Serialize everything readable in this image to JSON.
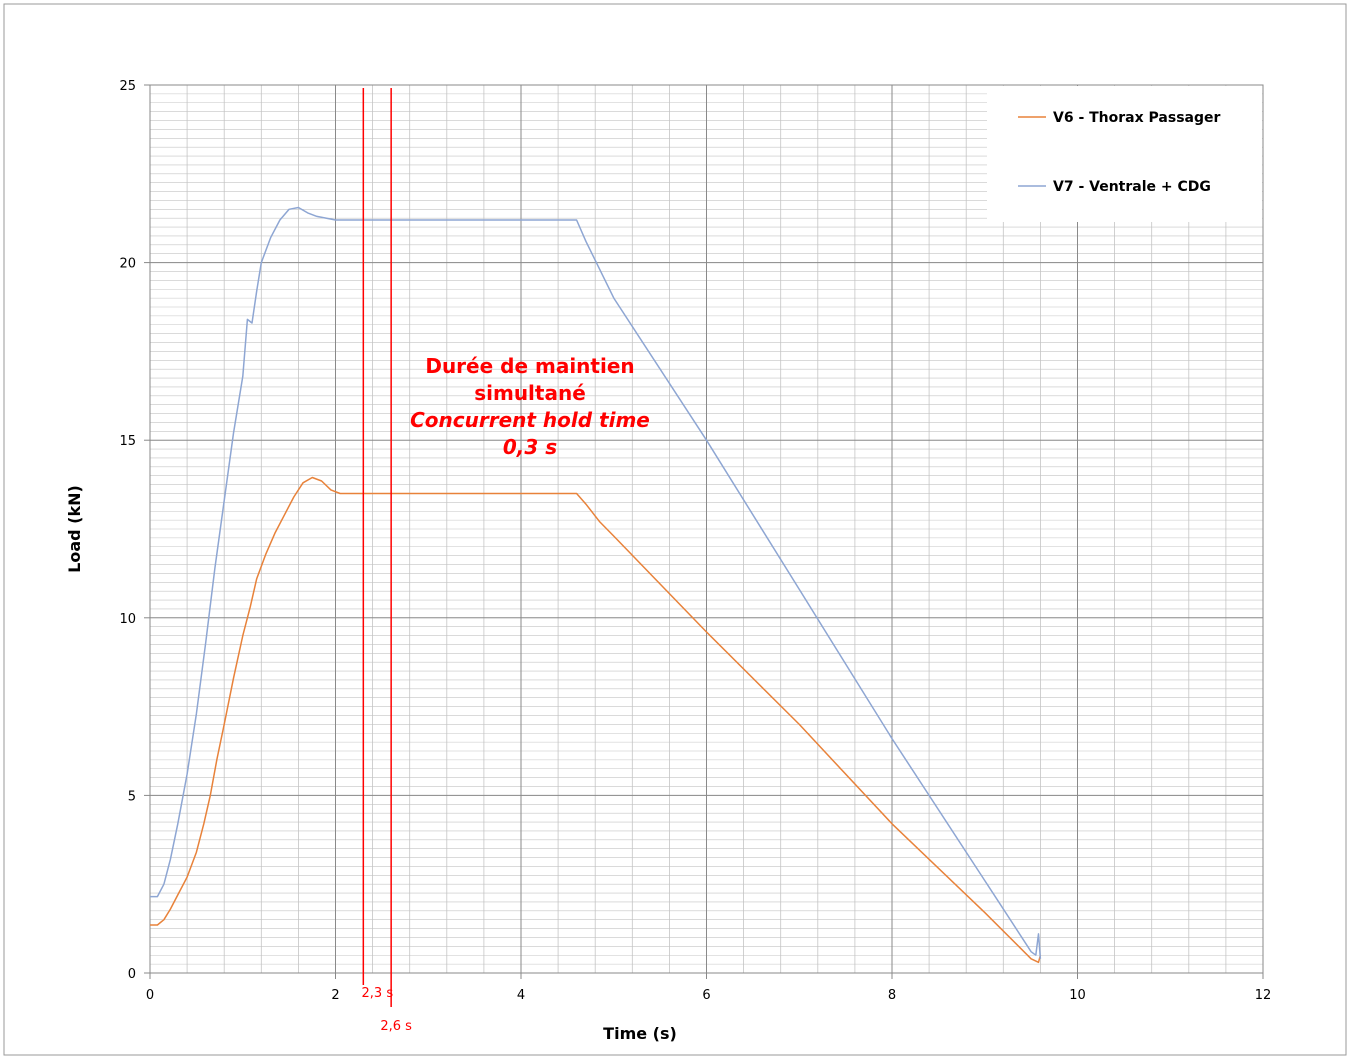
{
  "chart_data": {
    "type": "line",
    "xlabel": "Time (s)",
    "ylabel": "Load (kN)",
    "xlim": [
      0,
      12
    ],
    "ylim": [
      0,
      25
    ],
    "x_ticks": [
      0,
      2,
      4,
      6,
      8,
      10,
      12
    ],
    "y_ticks": [
      0,
      5,
      10,
      15,
      20,
      25
    ],
    "grid": true,
    "legend_position": "top-right",
    "series": [
      {
        "name": "V6 - Thorax Passager",
        "color": "#e8823a",
        "points": [
          [
            0.0,
            1.35
          ],
          [
            0.08,
            1.35
          ],
          [
            0.15,
            1.5
          ],
          [
            0.22,
            1.8
          ],
          [
            0.3,
            2.2
          ],
          [
            0.4,
            2.7
          ],
          [
            0.5,
            3.4
          ],
          [
            0.58,
            4.2
          ],
          [
            0.65,
            5.0
          ],
          [
            0.72,
            6.0
          ],
          [
            0.8,
            7.0
          ],
          [
            0.9,
            8.3
          ],
          [
            1.0,
            9.5
          ],
          [
            1.08,
            10.3
          ],
          [
            1.15,
            11.1
          ],
          [
            1.25,
            11.8
          ],
          [
            1.35,
            12.4
          ],
          [
            1.45,
            12.9
          ],
          [
            1.55,
            13.4
          ],
          [
            1.65,
            13.8
          ],
          [
            1.75,
            13.95
          ],
          [
            1.85,
            13.85
          ],
          [
            1.95,
            13.6
          ],
          [
            2.05,
            13.5
          ],
          [
            2.3,
            13.5
          ],
          [
            3.0,
            13.5
          ],
          [
            4.0,
            13.5
          ],
          [
            4.6,
            13.5
          ],
          [
            4.7,
            13.2
          ],
          [
            4.85,
            12.7
          ],
          [
            5.0,
            12.3
          ],
          [
            6.0,
            9.6
          ],
          [
            7.0,
            7.0
          ],
          [
            8.0,
            4.2
          ],
          [
            9.0,
            1.7
          ],
          [
            9.5,
            0.4
          ],
          [
            9.58,
            0.3
          ],
          [
            9.6,
            0.5
          ]
        ]
      },
      {
        "name": "V7 - Ventrale + CDG",
        "color": "#8ea6d3",
        "points": [
          [
            0.0,
            2.15
          ],
          [
            0.08,
            2.15
          ],
          [
            0.15,
            2.5
          ],
          [
            0.22,
            3.2
          ],
          [
            0.3,
            4.2
          ],
          [
            0.4,
            5.6
          ],
          [
            0.5,
            7.3
          ],
          [
            0.6,
            9.3
          ],
          [
            0.7,
            11.4
          ],
          [
            0.8,
            13.3
          ],
          [
            0.9,
            15.2
          ],
          [
            1.0,
            16.8
          ],
          [
            1.05,
            18.4
          ],
          [
            1.1,
            18.3
          ],
          [
            1.15,
            19.2
          ],
          [
            1.2,
            20.0
          ],
          [
            1.3,
            20.7
          ],
          [
            1.4,
            21.2
          ],
          [
            1.5,
            21.5
          ],
          [
            1.6,
            21.55
          ],
          [
            1.7,
            21.4
          ],
          [
            1.8,
            21.3
          ],
          [
            2.0,
            21.2
          ],
          [
            3.0,
            21.2
          ],
          [
            4.0,
            21.2
          ],
          [
            4.6,
            21.2
          ],
          [
            4.7,
            20.6
          ],
          [
            5.0,
            19.0
          ],
          [
            6.0,
            15.0
          ],
          [
            7.0,
            10.8
          ],
          [
            8.0,
            6.6
          ],
          [
            9.0,
            2.6
          ],
          [
            9.5,
            0.6
          ],
          [
            9.55,
            0.5
          ],
          [
            9.58,
            1.1
          ],
          [
            9.6,
            0.4
          ]
        ]
      }
    ],
    "markers": [
      {
        "x": 2.3,
        "label": "2,3 s",
        "color": "#ff0000"
      },
      {
        "x": 2.6,
        "label": "2,6 s",
        "color": "#ff0000"
      }
    ],
    "annotation": {
      "lines": [
        "Durée de maintien",
        "simultané",
        "Concurrent hold time",
        "0,3 s"
      ],
      "italic": [
        false,
        false,
        true,
        true
      ],
      "color": "#ff0000"
    }
  }
}
